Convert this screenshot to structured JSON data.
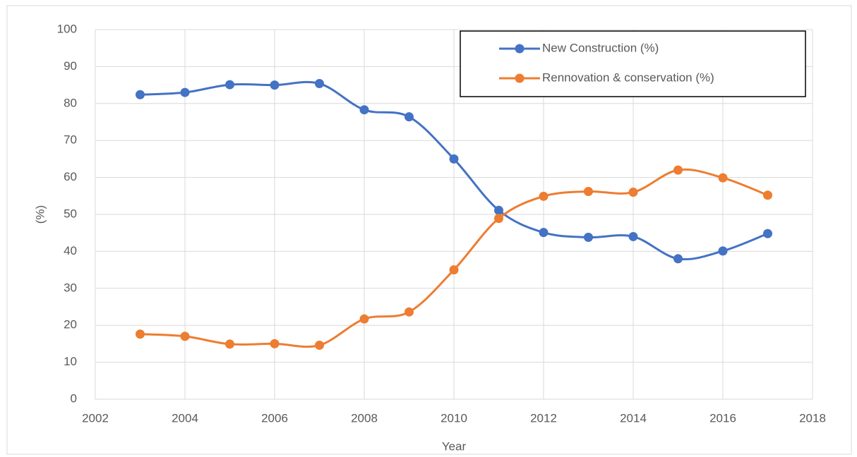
{
  "chart_data": {
    "type": "line",
    "xlabel": "Year",
    "ylabel": "(%)",
    "x": [
      2003,
      2004,
      2005,
      2006,
      2007,
      2008,
      2009,
      2010,
      2011,
      2012,
      2013,
      2014,
      2015,
      2016,
      2017
    ],
    "series": [
      {
        "name": "New Construction (%)",
        "color": "#4472c4",
        "values": [
          82.4,
          83,
          85.1,
          85,
          85.4,
          78.3,
          76.4,
          65,
          51.1,
          45.1,
          43.8,
          44,
          38,
          40.1,
          44.8
        ]
      },
      {
        "name": "Rennovation & conservation  (%)",
        "color": "#ed7d31",
        "values": [
          17.6,
          17,
          14.9,
          15,
          14.6,
          21.7,
          23.6,
          35,
          48.9,
          54.9,
          56.2,
          56,
          62,
          59.9,
          55.2
        ]
      }
    ],
    "xlim": [
      2002,
      2018
    ],
    "xticks": [
      2002,
      2004,
      2006,
      2008,
      2010,
      2012,
      2014,
      2016,
      2018
    ],
    "ylim": [
      0,
      100
    ],
    "yticks": [
      0,
      10,
      20,
      30,
      40,
      50,
      60,
      70,
      80,
      90,
      100
    ],
    "grid": true,
    "smooth": true,
    "legend": "upper right"
  }
}
